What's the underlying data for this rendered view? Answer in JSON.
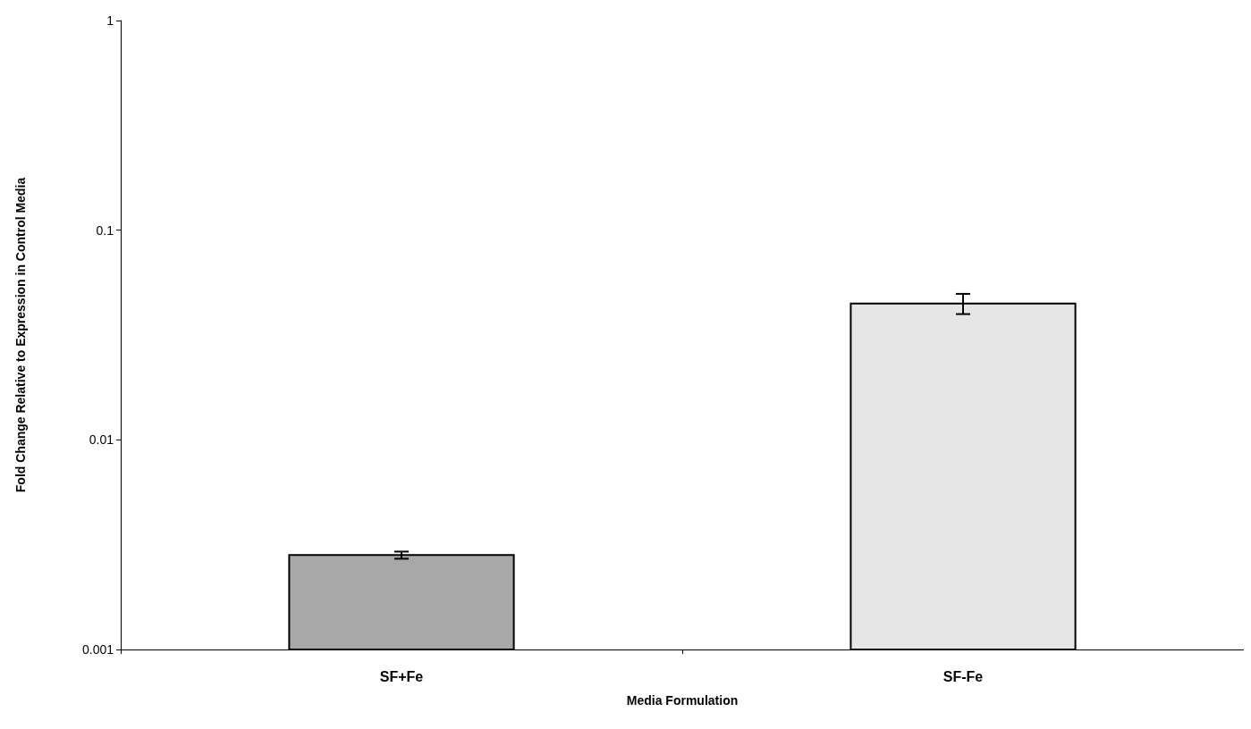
{
  "chart_data": {
    "type": "bar",
    "xlabel": "Media Formulation",
    "ylabel": "Fold Change Relative to Expression in Control Media",
    "categories": [
      "SF+Fe",
      "SF-Fe"
    ],
    "values": [
      0.00282,
      0.0447
    ],
    "colors": [
      "#a8a8a8",
      "#e6e6e6"
    ],
    "errors": [
      [
        0.00271,
        0.00293
      ],
      [
        0.0398,
        0.0497
      ]
    ],
    "log": true,
    "ylim": [
      0.001,
      1
    ],
    "yticks": [
      0.001,
      0.01,
      0.1,
      1
    ],
    "grid": false
  }
}
